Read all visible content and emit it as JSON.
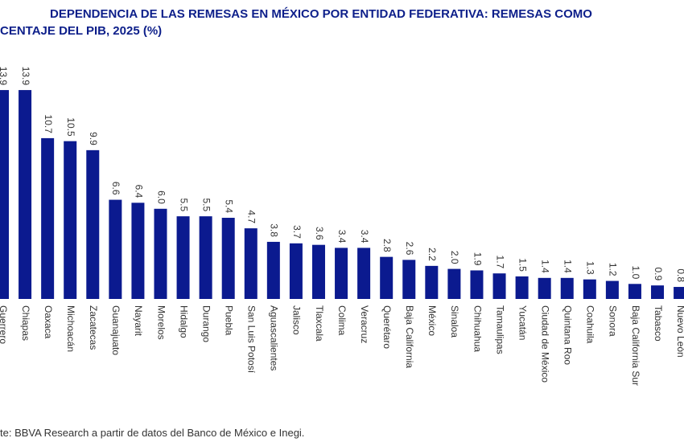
{
  "chart_data": {
    "type": "bar",
    "title": "DEPENDENCIA DE LAS REMESAS EN MÉXICO POR ENTIDAD FEDERATIVA: REMESAS COMO",
    "subtitle": "CENTAJE DEL PIB, 2025 (%)",
    "source": "te: BBVA Research a partir de datos del Banco de México e Inegi.",
    "color": "#0b1a8f",
    "categories": [
      "Guerrero",
      "Chiapas",
      "Oaxaca",
      "Michoacán",
      "Zacatecas",
      "Guanajuato",
      "Nayarit",
      "Morelos",
      "Hidalgo",
      "Durango",
      "Puebla",
      "San Luis Potosí",
      "Aguascalientes",
      "Jalisco",
      "Tlaxcala",
      "Colima",
      "Veracruz",
      "Querétaro",
      "Baja California",
      "México",
      "Sinaloa",
      "Chihuahua",
      "Tamaulipas",
      "Yucatán",
      "Ciudad de México",
      "Quintana Roo",
      "Coahuila",
      "Sonora",
      "Baja California Sur",
      "Tabasco",
      "Nuevo León"
    ],
    "values": [
      13.9,
      13.9,
      10.7,
      10.5,
      9.9,
      6.6,
      6.4,
      6.0,
      5.5,
      5.5,
      5.4,
      4.7,
      3.8,
      3.7,
      3.6,
      3.4,
      3.4,
      2.8,
      2.6,
      2.2,
      2.0,
      1.9,
      1.7,
      1.5,
      1.4,
      1.4,
      1.3,
      1.2,
      1.0,
      0.9,
      0.8
    ],
    "value_labels": [
      "13.9",
      "13.9",
      "10.7",
      "10.5",
      "9.9",
      "6.6",
      "6.4",
      "6.0",
      "5.5",
      "5.5",
      "5.4",
      "4.7",
      "3.8",
      "3.7",
      "3.6",
      "3.4",
      "3.4",
      "2.8",
      "2.6",
      "2.2",
      "2.0",
      "1.9",
      "1.7",
      "1.5",
      "1.4",
      "1.4",
      "1.3",
      "1.2",
      "1.0",
      "0.9",
      "0.8"
    ]
  }
}
